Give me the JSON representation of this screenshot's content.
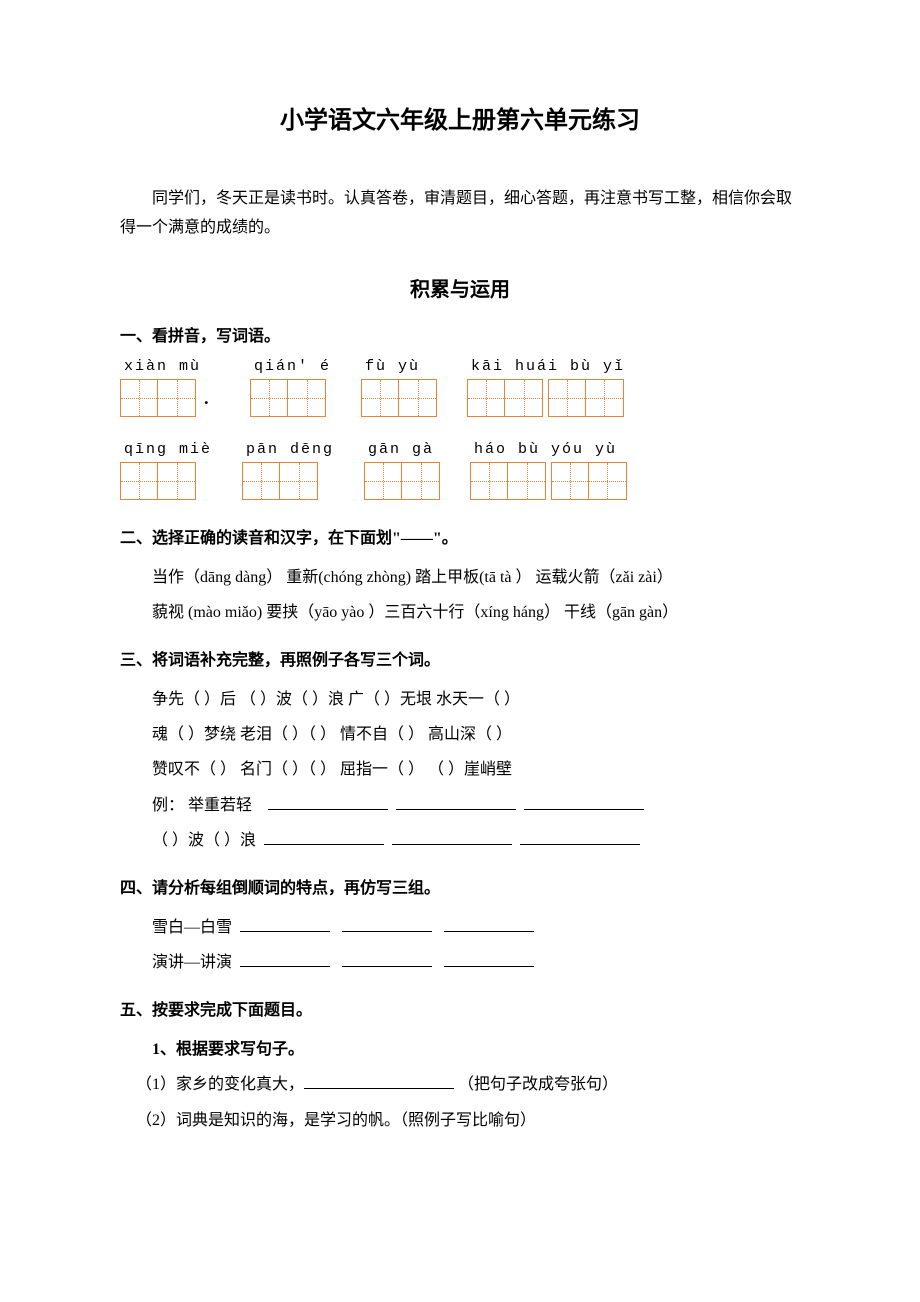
{
  "title": "小学语文六年级上册第六单元练习",
  "intro": "同学们，冬天正是读书时。认真答卷，审清题目，细心答题，再注意书写工整，相信你会取得一个满意的成绩的。",
  "section_title": "积累与运用",
  "colors": {
    "box_border": "#e8833a",
    "text": "#000000",
    "background": "#ffffff"
  },
  "q1": {
    "heading": "一、看拼音，写词语。",
    "row1": [
      {
        "pinyin": "xiàn mù",
        "boxes": 2,
        "trailing_dot": true
      },
      {
        "pinyin": "qián' é",
        "boxes": 2
      },
      {
        "pinyin": "fù  yù",
        "boxes": 2
      },
      {
        "pinyin": "kāi huái  bù  yǐ",
        "boxes": 4
      }
    ],
    "row2": [
      {
        "pinyin": "qīng miè",
        "boxes": 2
      },
      {
        "pinyin": "pān dēng",
        "boxes": 2
      },
      {
        "pinyin": "gān gà",
        "boxes": 2
      },
      {
        "pinyin": "háo  bù  yóu  yù",
        "boxes": 4
      }
    ]
  },
  "q2": {
    "heading": "二、选择正确的读音和汉字，在下面划\"——\"。",
    "line1": "当作（dāng dàng）    重新(chóng zhòng)    踏上甲板(tā tà ）  运载火箭（zǎi zài）",
    "line2": "藐视 (mào miǎo)      要挟（yāo   yào ）三百六十行（xíng háng） 干线（gān gàn）"
  },
  "q3": {
    "heading": "三、将词语补充完整，再照例子各写三个词。",
    "line1": "争先（   ）后      （   ）波（   ）浪    广（   ）无垠      水天一（   ）",
    "line2": "魂（   ）梦绕      老泪（   ）（   ）    情不自（   ）      高山深（   ）",
    "line3": "赞叹不（   ）      名门（   ）（   ）    屈指一（   ）    （   ）崖峭壁",
    "example_label": "例：  举重若轻",
    "blank_line": "（   ）波（   ）浪"
  },
  "q4": {
    "heading": "四、请分析每组倒顺词的特点，再仿写三组。",
    "line1": "雪白—白雪",
    "line2": "演讲—讲演"
  },
  "q5": {
    "heading": "五、按要求完成下面题目。",
    "sub": "1、根据要求写句子。",
    "item1_prefix": "（1）家乡的变化真大，",
    "item1_suffix": "（把句子改成夸张句）",
    "item2": "（2）词典是知识的海，是学习的帆。（照例子写比喻句）"
  }
}
